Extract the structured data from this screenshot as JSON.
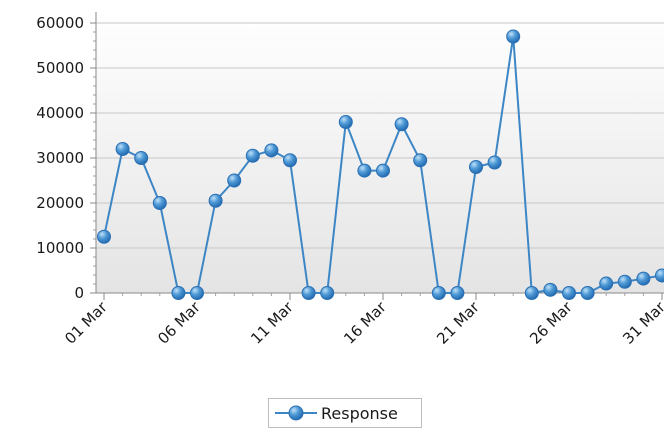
{
  "chart_data": {
    "type": "line",
    "title": "",
    "xlabel": "",
    "ylabel": "",
    "ylim": [
      0,
      60000
    ],
    "y_ticks": [
      "0",
      "10000",
      "20000",
      "30000",
      "40000",
      "50000",
      "60000"
    ],
    "x_tick_labels": [
      "01 Mar",
      "06 Mar",
      "11 Mar",
      "16 Mar",
      "21 Mar",
      "26 Mar",
      "31 Mar"
    ],
    "x_tick_days": [
      1,
      6,
      11,
      16,
      21,
      26,
      31
    ],
    "grid": true,
    "legend_position": "bottom",
    "series": [
      {
        "name": "Response",
        "color": "#3d86c6",
        "x": [
          "01 Mar",
          "02 Mar",
          "03 Mar",
          "04 Mar",
          "05 Mar",
          "06 Mar",
          "07 Mar",
          "08 Mar",
          "09 Mar",
          "10 Mar",
          "11 Mar",
          "12 Mar",
          "13 Mar",
          "14 Mar",
          "15 Mar",
          "16 Mar",
          "17 Mar",
          "18 Mar",
          "19 Mar",
          "20 Mar",
          "21 Mar",
          "22 Mar",
          "23 Mar",
          "24 Mar",
          "25 Mar",
          "26 Mar",
          "27 Mar",
          "28 Mar",
          "29 Mar",
          "30 Mar",
          "31 Mar"
        ],
        "values": [
          12500,
          32000,
          30000,
          20000,
          0,
          0,
          20500,
          25000,
          30500,
          31700,
          29500,
          0,
          0,
          38000,
          27200,
          27200,
          37500,
          29500,
          0,
          0,
          28000,
          29000,
          57000,
          0,
          700,
          0,
          0,
          2100,
          2500,
          3200,
          3900
        ]
      }
    ]
  }
}
